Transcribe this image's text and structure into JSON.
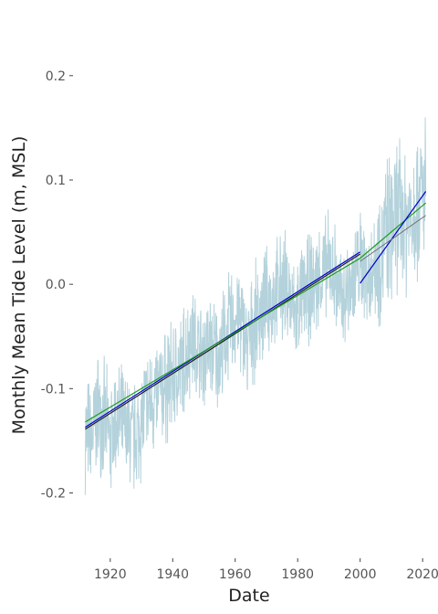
{
  "chart_data": {
    "type": "line",
    "xlabel": "Date",
    "ylabel": "Monthly Mean Tide Level (m, MSL)",
    "xlim": [
      1911,
      2022
    ],
    "ylim": [
      -0.26,
      0.255
    ],
    "grid": false,
    "x_ticks": [
      {
        "value": 1920,
        "label": "1920"
      },
      {
        "value": 1940,
        "label": "1940"
      },
      {
        "value": 1960,
        "label": "1960"
      },
      {
        "value": 1980,
        "label": "1980"
      },
      {
        "value": 2000,
        "label": "2000"
      },
      {
        "value": 2020,
        "label": "2020"
      }
    ],
    "y_ticks": [
      {
        "value": -0.2,
        "label": "-0.2"
      },
      {
        "value": -0.1,
        "label": "-0.1"
      },
      {
        "value": 0.0,
        "label": "0.0"
      },
      {
        "value": 0.1,
        "label": "0.1"
      },
      {
        "value": 0.2,
        "label": "0.2"
      }
    ],
    "colors": {
      "monthly": "#b4d2db",
      "trend_dark": "#1a1a1a",
      "trend_blue": "#0000cc",
      "trend_green": "#1f9a1f",
      "trend_grey": "#6b6b6b"
    },
    "monthly_series": {
      "x_start": 1912.0,
      "x_end": 2021.0,
      "trend_start": -0.135,
      "trend_end": 0.075,
      "anchors": [
        [
          1912,
          -0.14
        ],
        [
          1914,
          -0.15
        ],
        [
          1916,
          -0.12
        ],
        [
          1918,
          -0.13
        ],
        [
          1920,
          -0.15
        ],
        [
          1922,
          -0.13
        ],
        [
          1925,
          -0.14
        ],
        [
          1928,
          -0.15
        ],
        [
          1931,
          -0.12
        ],
        [
          1934,
          -0.11
        ],
        [
          1937,
          -0.1
        ],
        [
          1940,
          -0.09
        ],
        [
          1943,
          -0.08
        ],
        [
          1946,
          -0.05
        ],
        [
          1949,
          -0.07
        ],
        [
          1952,
          -0.06
        ],
        [
          1955,
          -0.07
        ],
        [
          1958,
          -0.04
        ],
        [
          1961,
          -0.03
        ],
        [
          1964,
          -0.06
        ],
        [
          1967,
          -0.03
        ],
        [
          1970,
          -0.02
        ],
        [
          1973,
          -0.01
        ],
        [
          1976,
          0.0
        ],
        [
          1979,
          -0.03
        ],
        [
          1982,
          -0.01
        ],
        [
          1985,
          0.0
        ],
        [
          1988,
          0.01
        ],
        [
          1991,
          0.02
        ],
        [
          1994,
          -0.02
        ],
        [
          1997,
          0.0
        ],
        [
          2000,
          0.02
        ],
        [
          2003,
          0.01
        ],
        [
          2006,
          0.03
        ],
        [
          2009,
          0.05
        ],
        [
          2012,
          0.07
        ],
        [
          2015,
          0.06
        ],
        [
          2018,
          0.08
        ],
        [
          2021,
          0.09
        ]
      ]
    },
    "trend_lines": [
      {
        "id": "long-term-fit-dark",
        "color_key": "trend_dark",
        "points": [
          [
            1912,
            -0.139
          ],
          [
            2000,
            0.029
          ]
        ]
      },
      {
        "id": "long-term-fit-blue",
        "color_key": "trend_blue",
        "points": [
          [
            1912,
            -0.137
          ],
          [
            2000,
            0.031
          ]
        ]
      },
      {
        "id": "long-term-fit-green",
        "color_key": "trend_green",
        "points": [
          [
            1912,
            -0.132
          ],
          [
            2000,
            0.025
          ],
          [
            2021,
            0.078
          ]
        ]
      },
      {
        "id": "recent-fit-blue",
        "color_key": "trend_blue",
        "points": [
          [
            2000,
            0.001
          ],
          [
            2021,
            0.089
          ]
        ]
      },
      {
        "id": "recent-fit-grey",
        "color_key": "trend_grey",
        "points": [
          [
            2000,
            0.022
          ],
          [
            2021,
            0.066
          ]
        ]
      }
    ]
  }
}
